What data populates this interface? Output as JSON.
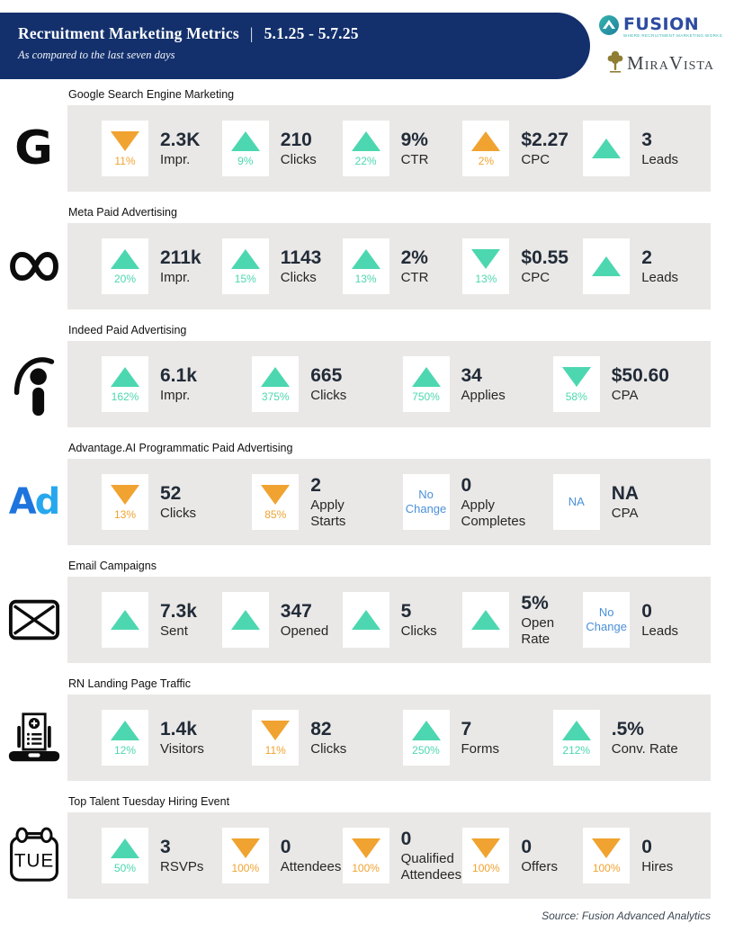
{
  "header": {
    "title": "Recruitment Marketing Metrics",
    "separator": "|",
    "date_range": "5.1.25 - 5.7.25",
    "subtitle": "As compared to the last seven days"
  },
  "logos": {
    "fusion": {
      "name": "FUSION",
      "tagline": "WHERE RECRUITMENT MARKETING WORKS"
    },
    "miravista": {
      "part_m": "M",
      "part_ira": "IRA",
      "part_v": "V",
      "part_ista": "ISTA"
    }
  },
  "colors": {
    "navy": "#13306d",
    "positive_teal": "#4cd7b0",
    "negative_orange": "#f0a330",
    "info_blue": "#4a90d8",
    "row_gray": "#e9e8e6"
  },
  "footer": {
    "source": "Source: Fusion Advanced Analytics"
  },
  "sections": [
    {
      "id": "google",
      "icon": "google-g-icon",
      "title": "Google Search Engine Marketing",
      "tiles": [
        {
          "indicator": "arrow",
          "direction": "down",
          "color": "orange",
          "pct": "11%",
          "value": "2.3K",
          "label": "Impr."
        },
        {
          "indicator": "arrow",
          "direction": "up",
          "color": "teal",
          "pct": "9%",
          "value": "210",
          "label": "Clicks"
        },
        {
          "indicator": "arrow",
          "direction": "up",
          "color": "teal",
          "pct": "22%",
          "value": "9%",
          "label": "CTR"
        },
        {
          "indicator": "arrow",
          "direction": "up",
          "color": "orange",
          "pct": "2%",
          "value": "$2.27",
          "label": "CPC"
        },
        {
          "indicator": "arrow",
          "direction": "up",
          "color": "teal",
          "value": "3",
          "label": "Leads"
        }
      ]
    },
    {
      "id": "meta",
      "icon": "meta-infinity-icon",
      "title": "Meta Paid Advertising",
      "tiles": [
        {
          "indicator": "arrow",
          "direction": "up",
          "color": "teal",
          "pct": "20%",
          "value": "211k",
          "label": "Impr."
        },
        {
          "indicator": "arrow",
          "direction": "up",
          "color": "teal",
          "pct": "15%",
          "value": "1143",
          "label": "Clicks"
        },
        {
          "indicator": "arrow",
          "direction": "up",
          "color": "teal",
          "pct": "13%",
          "value": "2%",
          "label": "CTR"
        },
        {
          "indicator": "arrow",
          "direction": "down",
          "color": "teal",
          "pct": "13%",
          "value": "$0.55",
          "label": "CPC"
        },
        {
          "indicator": "arrow",
          "direction": "up",
          "color": "teal",
          "value": "2",
          "label": "Leads"
        }
      ]
    },
    {
      "id": "indeed",
      "icon": "indeed-i-icon",
      "title": "Indeed Paid Advertising",
      "tiles": [
        {
          "indicator": "arrow",
          "direction": "up",
          "color": "teal",
          "pct": "162%",
          "value": "6.1k",
          "label": "Impr."
        },
        {
          "indicator": "arrow",
          "direction": "up",
          "color": "teal",
          "pct": "375%",
          "value": "665",
          "label": "Clicks"
        },
        {
          "indicator": "arrow",
          "direction": "up",
          "color": "teal",
          "pct": "750%",
          "value": "34",
          "label": "Applies"
        },
        {
          "indicator": "arrow",
          "direction": "down",
          "color": "teal",
          "pct": "58%",
          "value": "$50.60",
          "label": "CPA"
        }
      ]
    },
    {
      "id": "advantage",
      "icon": "advantage-ai-ad-icon",
      "title": "Advantage.AI Programmatic Paid Advertising",
      "tiles": [
        {
          "indicator": "arrow",
          "direction": "down",
          "color": "orange",
          "pct": "13%",
          "value": "52",
          "label": "Clicks"
        },
        {
          "indicator": "arrow",
          "direction": "down",
          "color": "orange",
          "pct": "85%",
          "value": "2",
          "label": "Apply\nStarts"
        },
        {
          "indicator": "text",
          "text": "No Change",
          "value": "0",
          "label": "Apply\nCompletes"
        },
        {
          "indicator": "text",
          "text": "NA",
          "value": "NA",
          "label": "CPA"
        }
      ]
    },
    {
      "id": "email",
      "icon": "email-envelope-icon",
      "title": "Email Campaigns",
      "tiles": [
        {
          "indicator": "arrow",
          "direction": "up",
          "color": "teal",
          "value": "7.3k",
          "label": "Sent"
        },
        {
          "indicator": "arrow",
          "direction": "up",
          "color": "teal",
          "value": "347",
          "label": "Opened"
        },
        {
          "indicator": "arrow",
          "direction": "up",
          "color": "teal",
          "value": "5",
          "label": "Clicks"
        },
        {
          "indicator": "arrow",
          "direction": "up",
          "color": "teal",
          "value": "5%",
          "label": "Open\nRate"
        },
        {
          "indicator": "text",
          "text": "No Change",
          "value": "0",
          "label": "Leads"
        }
      ]
    },
    {
      "id": "rn",
      "icon": "rn-landing-page-laptop-icon",
      "title": "RN Landing Page Traffic",
      "tiles": [
        {
          "indicator": "arrow",
          "direction": "up",
          "color": "teal",
          "pct": "12%",
          "value": "1.4k",
          "label": "Visitors"
        },
        {
          "indicator": "arrow",
          "direction": "down",
          "color": "orange",
          "pct": "11%",
          "value": "82",
          "label": "Clicks"
        },
        {
          "indicator": "arrow",
          "direction": "up",
          "color": "teal",
          "pct": "250%",
          "value": "7",
          "label": "Forms"
        },
        {
          "indicator": "arrow",
          "direction": "up",
          "color": "teal",
          "pct": "212%",
          "value": ".5%",
          "label": "Conv. Rate"
        }
      ]
    },
    {
      "id": "event",
      "icon": "tuesday-calendar-icon",
      "title": "Top Talent Tuesday Hiring Event",
      "tiles": [
        {
          "indicator": "arrow",
          "direction": "up",
          "color": "teal",
          "pct": "50%",
          "value": "3",
          "label": "RSVPs"
        },
        {
          "indicator": "arrow",
          "direction": "down",
          "color": "orange",
          "pct": "100%",
          "value": "0",
          "label": "Attendees"
        },
        {
          "indicator": "arrow",
          "direction": "down",
          "color": "orange",
          "pct": "100%",
          "value": "0",
          "label": "Qualified\nAttendees"
        },
        {
          "indicator": "arrow",
          "direction": "down",
          "color": "orange",
          "pct": "100%",
          "value": "0",
          "label": "Offers"
        },
        {
          "indicator": "arrow",
          "direction": "down",
          "color": "orange",
          "pct": "100%",
          "value": "0",
          "label": "Hires"
        }
      ]
    }
  ]
}
